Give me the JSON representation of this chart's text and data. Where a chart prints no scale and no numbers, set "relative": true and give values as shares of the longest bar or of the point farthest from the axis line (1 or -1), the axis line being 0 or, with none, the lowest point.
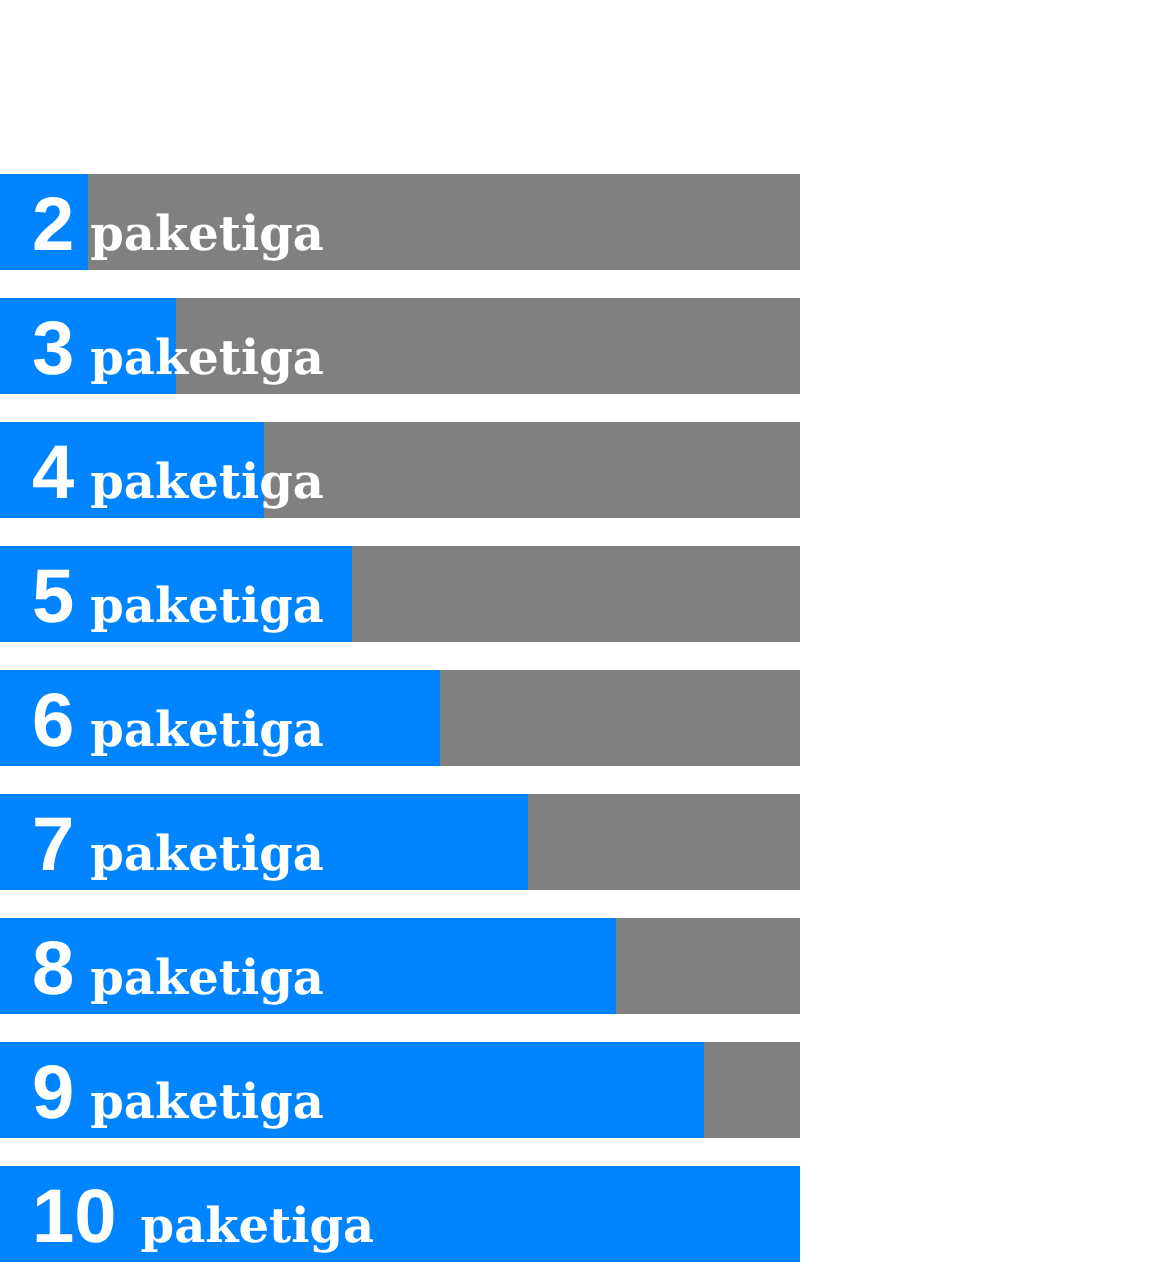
{
  "chart_data": {
    "type": "bar",
    "orientation": "horizontal",
    "stacked": true,
    "relative": true,
    "categories": [
      "2 paketiga",
      "3 paketiga",
      "4 paketiga",
      "5 paketiga",
      "6 paketiga",
      "7 paketiga",
      "8 paketiga",
      "9 paketiga",
      "10 paketiga"
    ],
    "series": [
      {
        "color": "#0084ff",
        "values": [
          0.11,
          0.22,
          0.33,
          0.44,
          0.55,
          0.66,
          0.77,
          0.88,
          1
        ]
      },
      {
        "color": "#808080",
        "values": [
          0.89,
          0.78,
          0.67,
          0.56,
          0.45,
          0.34,
          0.23,
          0.12,
          0
        ]
      }
    ]
  }
}
